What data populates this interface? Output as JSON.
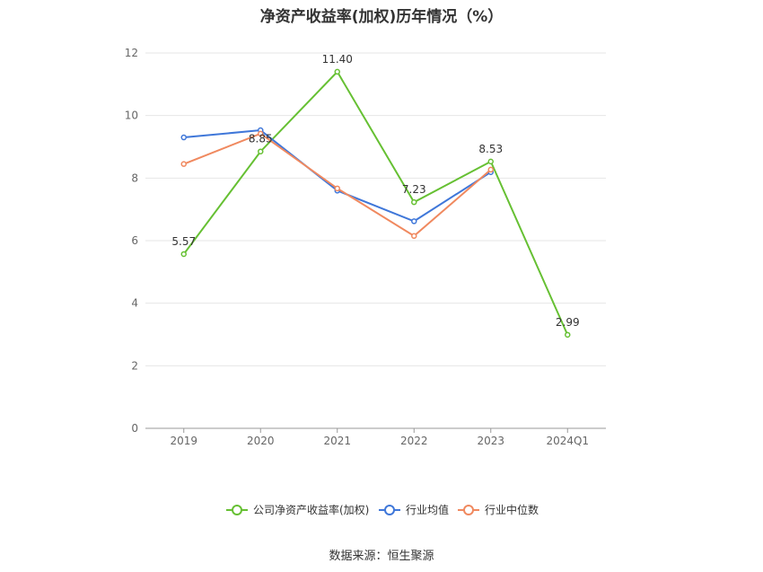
{
  "title": "净资产收益率(加权)历年情况（%）",
  "source": "数据来源：恒生聚源",
  "colors": {
    "company": "#66c033",
    "avg": "#3f77d9",
    "median": "#f0895f",
    "grid": "#e6e6e6",
    "axis": "#999999"
  },
  "chart_data": {
    "type": "line",
    "title": "净资产收益率(加权)历年情况（%）",
    "categories": [
      "2019",
      "2020",
      "2021",
      "2022",
      "2023",
      "2024Q1"
    ],
    "ylim": [
      0,
      12
    ],
    "yticks": [
      0,
      2,
      4,
      6,
      8,
      10,
      12
    ],
    "grid": true,
    "legend_position": "bottom",
    "series": [
      {
        "name": "公司净资产收益率(加权)",
        "values": [
          5.57,
          8.85,
          11.4,
          7.23,
          8.53,
          2.99
        ],
        "labels": [
          "5.57",
          "8.85",
          "11.40",
          "7.23",
          "8.53",
          "2.99"
        ]
      },
      {
        "name": "行业均值",
        "values": [
          9.3,
          9.53,
          7.6,
          6.62,
          8.19,
          null
        ]
      },
      {
        "name": "行业中位数",
        "values": [
          8.45,
          9.42,
          7.67,
          6.15,
          8.27,
          null
        ]
      }
    ]
  }
}
